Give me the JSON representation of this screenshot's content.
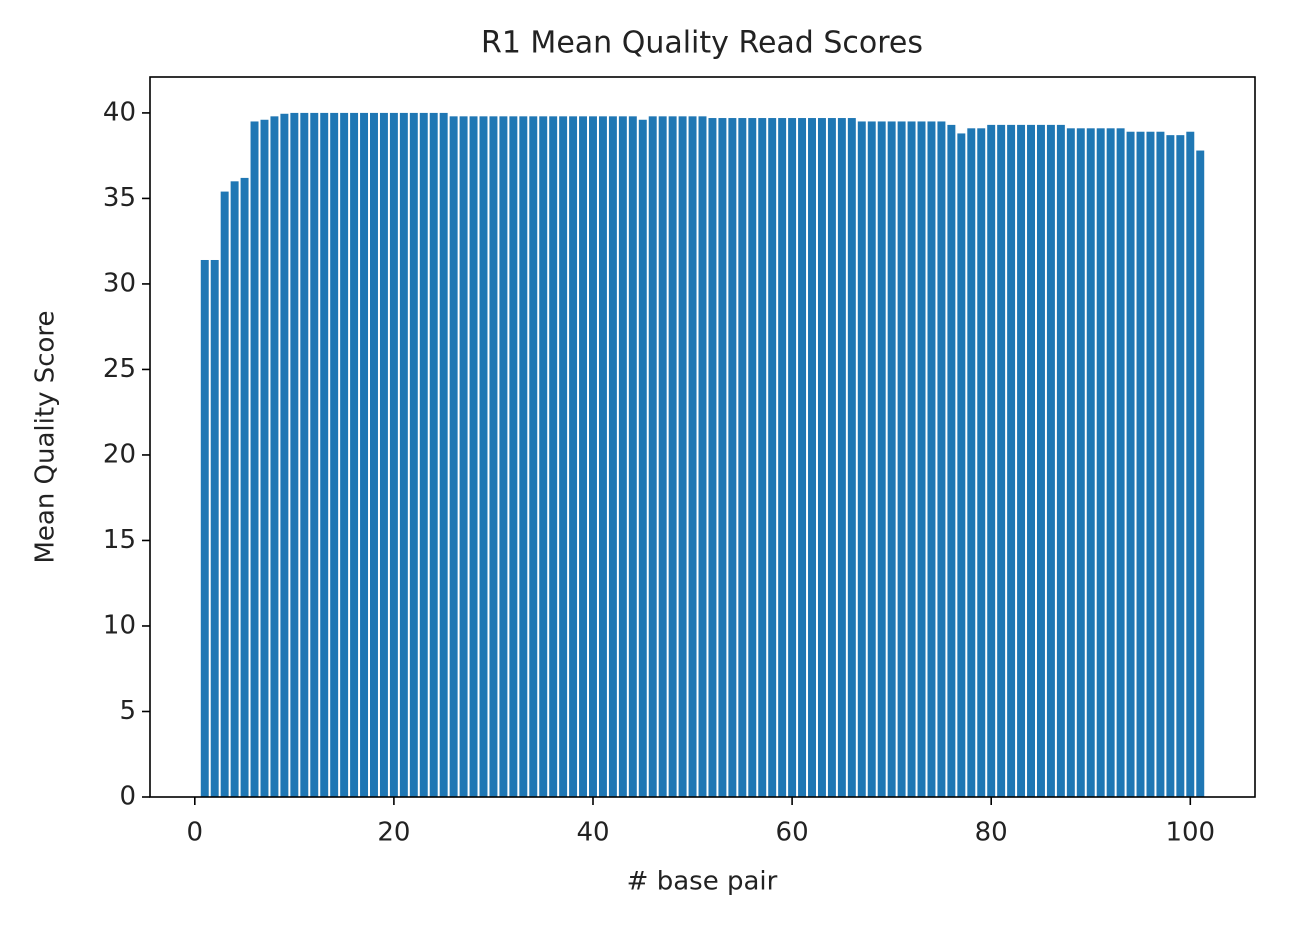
{
  "chart_data": {
    "type": "bar",
    "title": "R1 Mean Quality Read Scores",
    "xlabel": "# base pair",
    "ylabel": "Mean Quality Score",
    "x": [
      1,
      2,
      3,
      4,
      5,
      6,
      7,
      8,
      9,
      10,
      11,
      12,
      13,
      14,
      15,
      16,
      17,
      18,
      19,
      20,
      21,
      22,
      23,
      24,
      25,
      26,
      27,
      28,
      29,
      30,
      31,
      32,
      33,
      34,
      35,
      36,
      37,
      38,
      39,
      40,
      41,
      42,
      43,
      44,
      45,
      46,
      47,
      48,
      49,
      50,
      51,
      52,
      53,
      54,
      55,
      56,
      57,
      58,
      59,
      60,
      61,
      62,
      63,
      64,
      65,
      66,
      67,
      68,
      69,
      70,
      71,
      72,
      73,
      74,
      75,
      76,
      77,
      78,
      79,
      80,
      81,
      82,
      83,
      84,
      85,
      86,
      87,
      88,
      89,
      90,
      91,
      92,
      93,
      94,
      95,
      96,
      97,
      98,
      99,
      100,
      101
    ],
    "values": [
      31.4,
      31.4,
      35.4,
      36.0,
      36.2,
      39.5,
      39.6,
      39.8,
      39.95,
      40.0,
      40.0,
      40.0,
      40.0,
      40.0,
      40.0,
      40.0,
      40.0,
      40.0,
      40.0,
      40.0,
      40.0,
      40.0,
      40.0,
      40.0,
      40.0,
      39.8,
      39.8,
      39.8,
      39.8,
      39.8,
      39.8,
      39.8,
      39.8,
      39.8,
      39.8,
      39.8,
      39.8,
      39.8,
      39.8,
      39.8,
      39.8,
      39.8,
      39.8,
      39.8,
      39.6,
      39.8,
      39.8,
      39.8,
      39.8,
      39.8,
      39.8,
      39.7,
      39.7,
      39.7,
      39.7,
      39.7,
      39.7,
      39.7,
      39.7,
      39.7,
      39.7,
      39.7,
      39.7,
      39.7,
      39.7,
      39.7,
      39.5,
      39.5,
      39.5,
      39.5,
      39.5,
      39.5,
      39.5,
      39.5,
      39.5,
      39.3,
      38.8,
      39.1,
      39.1,
      39.3,
      39.3,
      39.3,
      39.3,
      39.3,
      39.3,
      39.3,
      39.3,
      39.1,
      39.1,
      39.1,
      39.1,
      39.1,
      39.1,
      38.9,
      38.9,
      38.9,
      38.9,
      38.7,
      38.7,
      38.9,
      37.8
    ],
    "color": "#1f77b4",
    "bar_width": 0.8,
    "xlim": [
      -4.5,
      106.5
    ],
    "xticks": [
      0,
      20,
      40,
      60,
      80,
      100
    ],
    "ylim": [
      0,
      42.1
    ],
    "yticks": [
      0,
      5,
      10,
      15,
      20,
      25,
      30,
      35,
      40
    ],
    "grid": false
  }
}
